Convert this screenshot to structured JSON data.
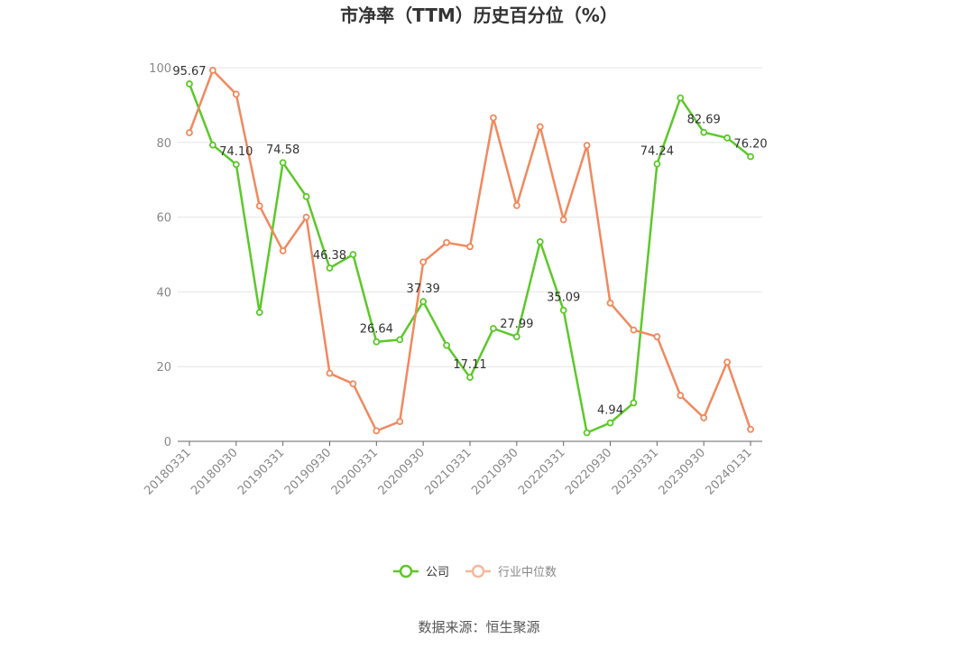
{
  "chart_data": {
    "type": "line",
    "title": "市净率（TTM）历史百分位（%）",
    "ylim": [
      0,
      100
    ],
    "yticks": [
      0,
      20,
      40,
      60,
      80,
      100
    ],
    "x": [
      "20180331",
      "20180630",
      "20180930",
      "20181231",
      "20190331",
      "20190630",
      "20190930",
      "20191231",
      "20200331",
      "20200630",
      "20200930",
      "20201231",
      "20210331",
      "20210630",
      "20210930",
      "20211231",
      "20220331",
      "20220630",
      "20220930",
      "20221231",
      "20230331",
      "20230630",
      "20230930",
      "20231231",
      "20240131"
    ],
    "xtick_labels": [
      "20180331",
      "20180930",
      "20190331",
      "20190930",
      "20200331",
      "20200930",
      "20210331",
      "20210930",
      "20220331",
      "20220930",
      "20230331",
      "20230930",
      "20240131"
    ],
    "grid": true,
    "legend_position": "bottom",
    "series": [
      {
        "name": "公司",
        "color": "#5cc82a",
        "values": [
          95.67,
          79.3,
          74.1,
          34.5,
          74.58,
          65.5,
          46.38,
          50.0,
          26.64,
          27.2,
          37.39,
          25.7,
          17.11,
          30.2,
          27.99,
          53.4,
          35.09,
          2.3,
          4.94,
          10.3,
          74.24,
          91.9,
          82.69,
          81.2,
          76.2
        ],
        "labels": {
          "0": "95.67",
          "2": "74.10",
          "4": "74.58",
          "6": "46.38",
          "8": "26.64",
          "10": "37.39",
          "12": "17.11",
          "14": "27.99",
          "16": "35.09",
          "18": "4.94",
          "20": "74.24",
          "22": "82.69",
          "24": "76.20"
        }
      },
      {
        "name": "行业中位数",
        "color": "#f0895e",
        "values": [
          82.6,
          99.3,
          92.9,
          63.0,
          51.0,
          60.0,
          18.2,
          15.4,
          2.8,
          5.3,
          48.0,
          53.2,
          52.1,
          86.6,
          63.1,
          84.2,
          59.3,
          79.2,
          37.0,
          29.8,
          28.0,
          12.3,
          6.3,
          21.2,
          3.2
        ]
      }
    ]
  },
  "source": "数据来源：恒生聚源"
}
